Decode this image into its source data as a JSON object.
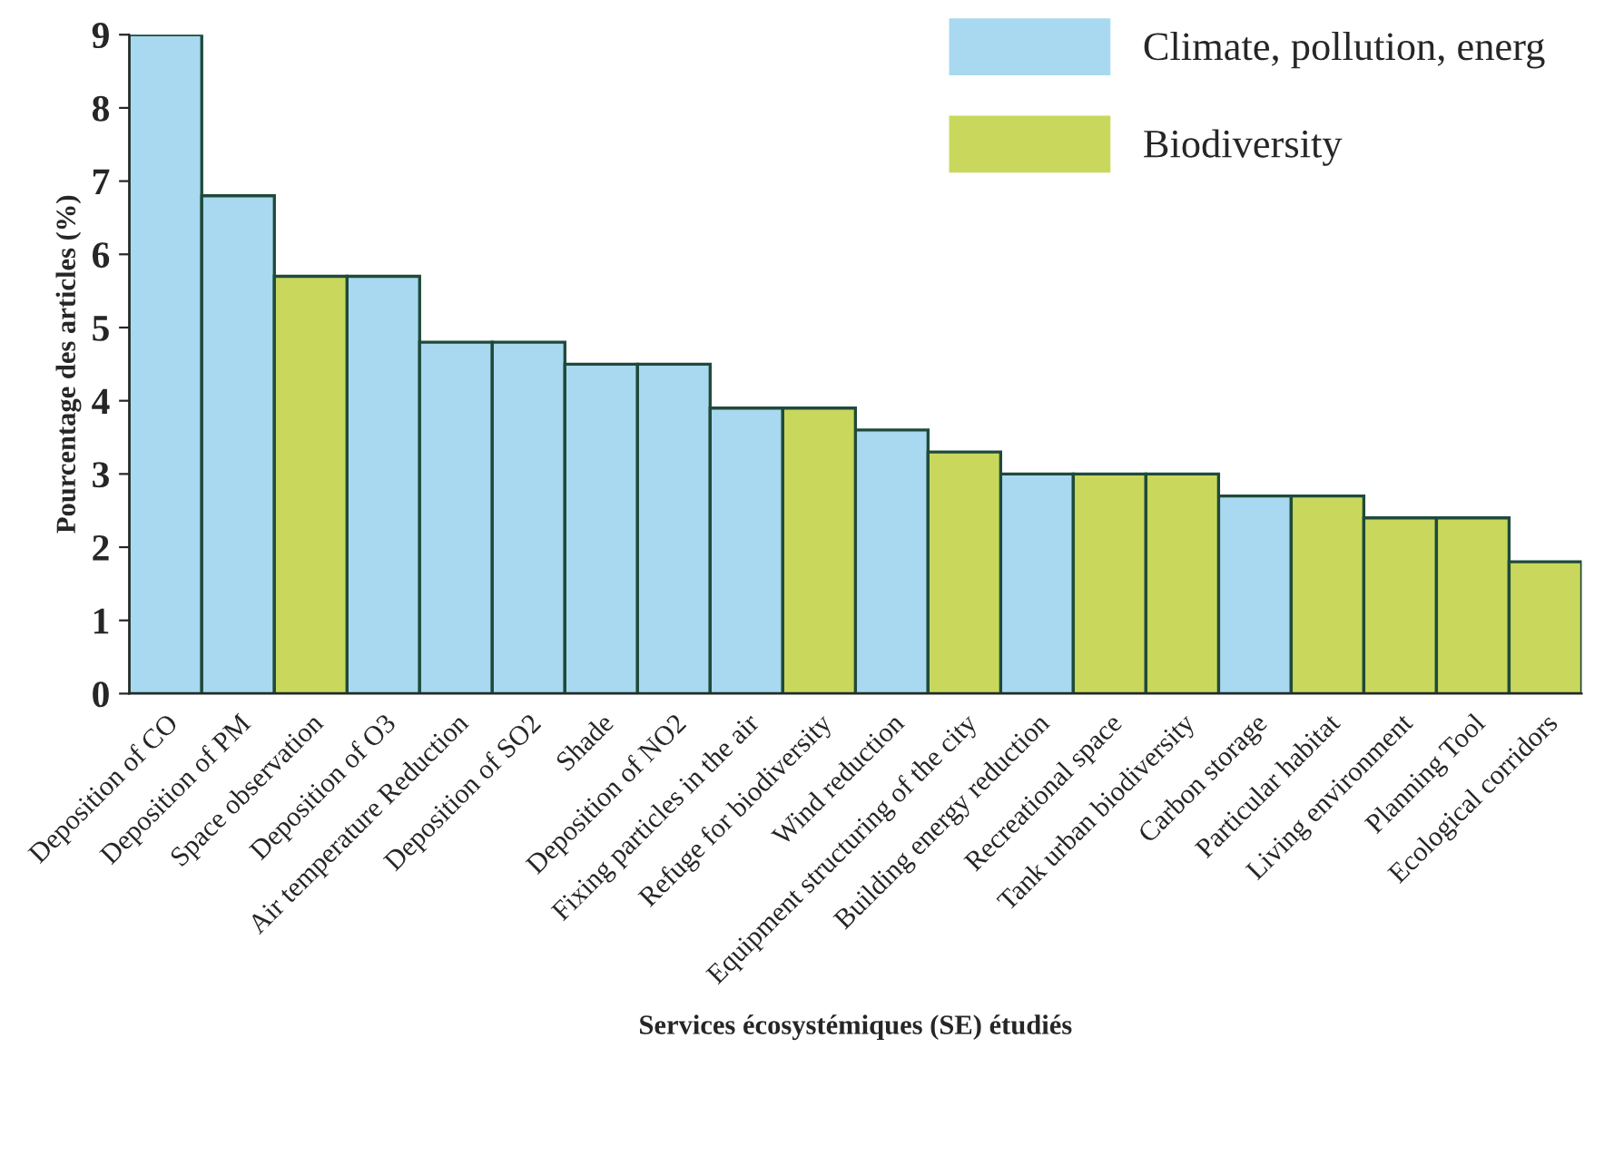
{
  "chart_data": {
    "type": "bar",
    "xlabel": "Services écosystémiques (SE) étudiés",
    "ylabel": "Pourcentage des articles (%)",
    "categories": [
      "Deposition of CO",
      "Deposition of PM",
      "Space observation",
      "Deposition of O3",
      "Air temperature Reduction",
      "Deposition of SO2",
      "Shade",
      "Deposition of NO2",
      "Fixing particles in the air",
      "Refuge for biodiversity",
      "Wind reduction",
      "Equipment structuring of the city",
      "Building energy reduction",
      "Recreational space",
      "Tank urban biodiversity",
      "Carbon storage",
      "Particular habitat",
      "Living environment",
      "Planning Tool",
      "Ecological corridors"
    ],
    "series": [
      {
        "name": "Climate, pollution, energ",
        "color": "#a9d9f0",
        "values": [
          9.0,
          6.8,
          null,
          5.7,
          4.8,
          4.8,
          4.5,
          4.5,
          3.9,
          null,
          3.6,
          null,
          3.0,
          null,
          null,
          2.7,
          null,
          null,
          null,
          null
        ]
      },
      {
        "name": "Biodiversity",
        "color": "#c9d85c",
        "values": [
          null,
          null,
          5.7,
          null,
          null,
          null,
          null,
          null,
          null,
          3.9,
          null,
          3.3,
          null,
          3.0,
          3.0,
          null,
          2.7,
          2.4,
          2.4,
          1.8
        ]
      }
    ],
    "ylim": [
      0,
      9
    ],
    "yticks": [
      0,
      1,
      2,
      3,
      4,
      5,
      6,
      7,
      8,
      9
    ],
    "grid": false,
    "legend": "top right"
  }
}
